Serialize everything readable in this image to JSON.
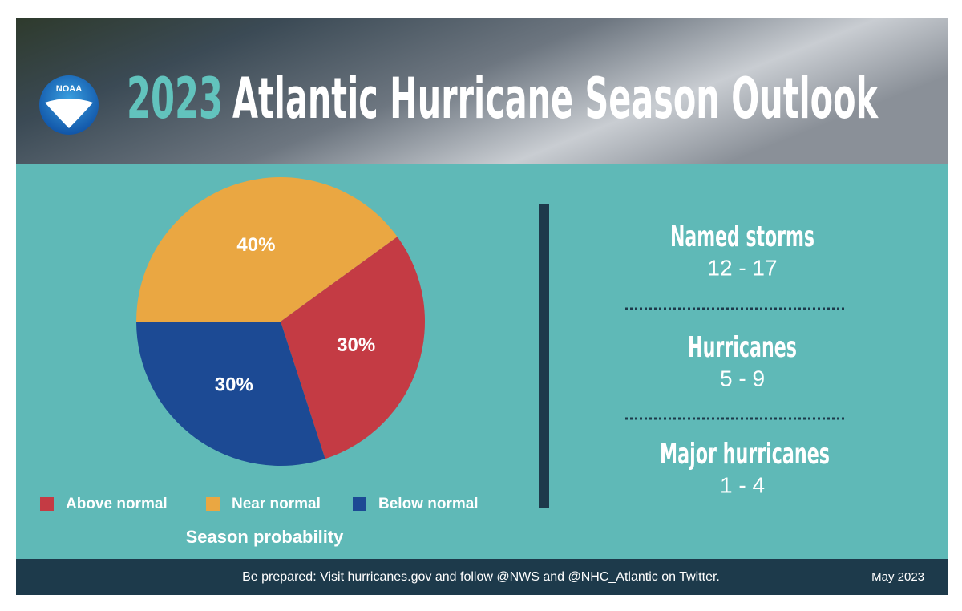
{
  "header": {
    "logo": "NOAA",
    "title_year": "2023",
    "title": "Atlantic Hurricane Season Outlook"
  },
  "chart_data": {
    "type": "pie",
    "title": "Season probability",
    "categories": [
      "Above normal",
      "Near normal",
      "Below normal"
    ],
    "values": [
      30,
      40,
      30
    ],
    "value_labels": [
      "30%",
      "40%",
      "30%"
    ],
    "colors": [
      "#c43b44",
      "#eaa742",
      "#1c4a94"
    ]
  },
  "stats": [
    {
      "label": "Named storms",
      "range": "12 - 17"
    },
    {
      "label": "Hurricanes",
      "range": "5 - 9"
    },
    {
      "label": "Major hurricanes",
      "range": "1 - 4"
    }
  ],
  "footer": {
    "text": "Be prepared: Visit hurricanes.gov and follow @NWS and @NHC_Atlantic on Twitter.",
    "date": "May 2023"
  }
}
